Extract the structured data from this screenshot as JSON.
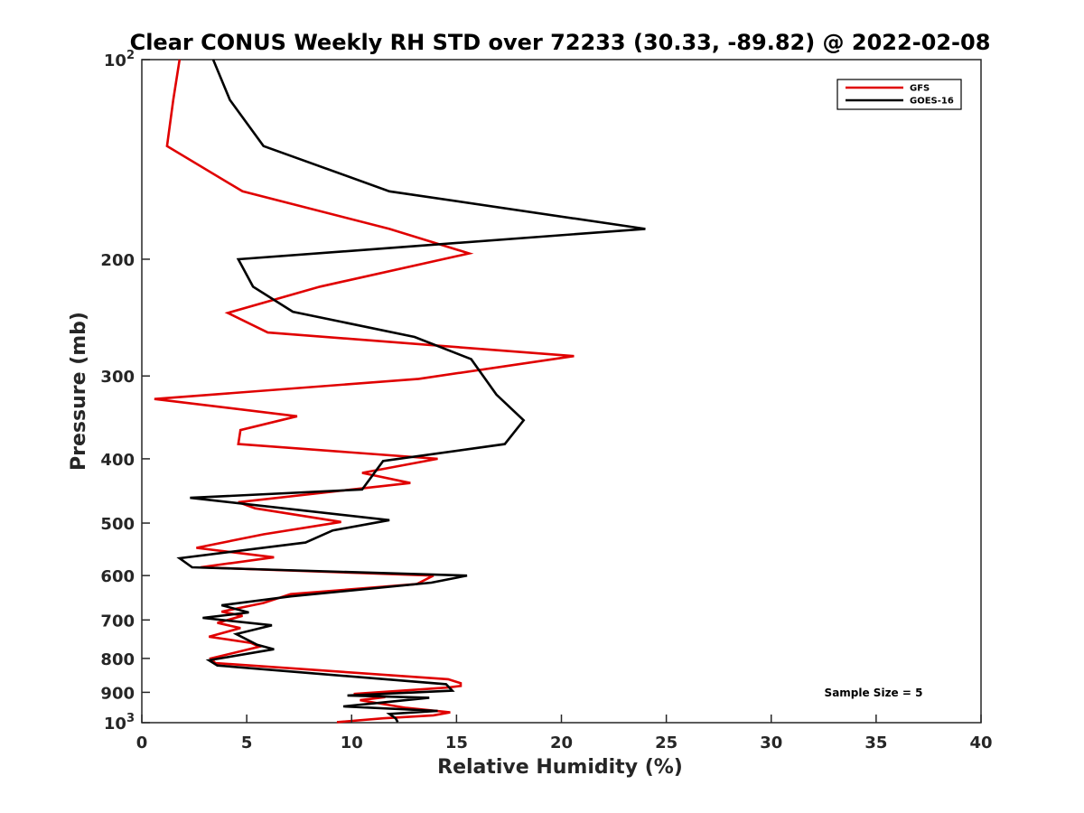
{
  "chart_data": {
    "type": "line",
    "title": "Clear CONUS Weekly RH STD over 72233 (30.33, -89.82) @ 2022-02-08",
    "xlabel": "Relative Humidity (%)",
    "ylabel": "Pressure (mb)",
    "xlim": [
      0,
      40
    ],
    "ylim": [
      100,
      1000
    ],
    "y_scale": "log",
    "y_reversed": true,
    "grid": false,
    "legend_position": "top-right",
    "annotation": "Sample Size = 5",
    "x_ticks": [
      {
        "value": 0,
        "label": "0"
      },
      {
        "value": 5,
        "label": "5"
      },
      {
        "value": 10,
        "label": "10"
      },
      {
        "value": 15,
        "label": "15"
      },
      {
        "value": 20,
        "label": "20"
      },
      {
        "value": 25,
        "label": "25"
      },
      {
        "value": 30,
        "label": "30"
      },
      {
        "value": 35,
        "label": "35"
      },
      {
        "value": 40,
        "label": "40"
      }
    ],
    "y_ticks": [
      {
        "value": 100,
        "base": "10",
        "exp": "2"
      },
      {
        "value": 200,
        "base": "200",
        "exp": ""
      },
      {
        "value": 300,
        "base": "300",
        "exp": ""
      },
      {
        "value": 400,
        "base": "400",
        "exp": ""
      },
      {
        "value": 500,
        "base": "500",
        "exp": ""
      },
      {
        "value": 600,
        "base": "600",
        "exp": ""
      },
      {
        "value": 700,
        "base": "700",
        "exp": ""
      },
      {
        "value": 800,
        "base": "800",
        "exp": ""
      },
      {
        "value": 900,
        "base": "900",
        "exp": ""
      },
      {
        "value": 1000,
        "base": "10",
        "exp": "3"
      }
    ],
    "series": [
      {
        "name": "GFS",
        "color": "#e00000",
        "points": [
          [
            1.8,
            100
          ],
          [
            1.5,
            115
          ],
          [
            1.2,
            135
          ],
          [
            4.8,
            158
          ],
          [
            11.8,
            180
          ],
          [
            15.6,
            196
          ],
          [
            8.5,
            220
          ],
          [
            4.1,
            241
          ],
          [
            6.0,
            258
          ],
          [
            20.6,
            280
          ],
          [
            13.2,
            303
          ],
          [
            0.6,
            325
          ],
          [
            7.4,
            345
          ],
          [
            4.7,
            362
          ],
          [
            4.6,
            380
          ],
          [
            14.1,
            400
          ],
          [
            10.5,
            420
          ],
          [
            12.8,
            435
          ],
          [
            4.6,
            465
          ],
          [
            5.4,
            475
          ],
          [
            9.5,
            498
          ],
          [
            5.8,
            520
          ],
          [
            2.6,
            545
          ],
          [
            6.3,
            563
          ],
          [
            2.8,
            583
          ],
          [
            13.9,
            600
          ],
          [
            13.1,
            618
          ],
          [
            7.1,
            640
          ],
          [
            5.8,
            660
          ],
          [
            3.8,
            680
          ],
          [
            4.8,
            690
          ],
          [
            3.6,
            707
          ],
          [
            4.7,
            720
          ],
          [
            3.2,
            742
          ],
          [
            5.2,
            758
          ],
          [
            5.6,
            768
          ],
          [
            3.3,
            800
          ],
          [
            3.5,
            813
          ],
          [
            14.6,
            860
          ],
          [
            15.2,
            872
          ],
          [
            15.2,
            880
          ],
          [
            14.6,
            885
          ],
          [
            10.1,
            905
          ],
          [
            11.6,
            915
          ],
          [
            10.4,
            925
          ],
          [
            12.6,
            950
          ],
          [
            14.7,
            965
          ],
          [
            13.9,
            975
          ],
          [
            11.5,
            985
          ],
          [
            9.3,
            998
          ]
        ]
      },
      {
        "name": "GOES-16",
        "color": "#000000",
        "points": [
          [
            3.4,
            100
          ],
          [
            4.2,
            115
          ],
          [
            5.8,
            135
          ],
          [
            11.8,
            158
          ],
          [
            24.0,
            180
          ],
          [
            4.6,
            200
          ],
          [
            5.3,
            220
          ],
          [
            7.2,
            240
          ],
          [
            13.0,
            262
          ],
          [
            15.7,
            283
          ],
          [
            16.9,
            320
          ],
          [
            18.2,
            350
          ],
          [
            17.3,
            380
          ],
          [
            11.5,
            403
          ],
          [
            10.5,
            445
          ],
          [
            2.3,
            458
          ],
          [
            11.8,
            495
          ],
          [
            9.1,
            513
          ],
          [
            7.8,
            535
          ],
          [
            1.8,
            565
          ],
          [
            2.4,
            583
          ],
          [
            15.5,
            600
          ],
          [
            13.8,
            615
          ],
          [
            7.1,
            645
          ],
          [
            3.8,
            665
          ],
          [
            5.1,
            682
          ],
          [
            2.9,
            695
          ],
          [
            6.2,
            713
          ],
          [
            4.5,
            735
          ],
          [
            5.5,
            763
          ],
          [
            6.3,
            775
          ],
          [
            3.2,
            805
          ],
          [
            3.6,
            820
          ],
          [
            14.5,
            875
          ],
          [
            14.8,
            895
          ],
          [
            9.8,
            910
          ],
          [
            13.7,
            917
          ],
          [
            9.6,
            945
          ],
          [
            14.1,
            960
          ],
          [
            11.8,
            970
          ],
          [
            12.1,
            985
          ],
          [
            12.2,
            998
          ]
        ]
      }
    ]
  }
}
